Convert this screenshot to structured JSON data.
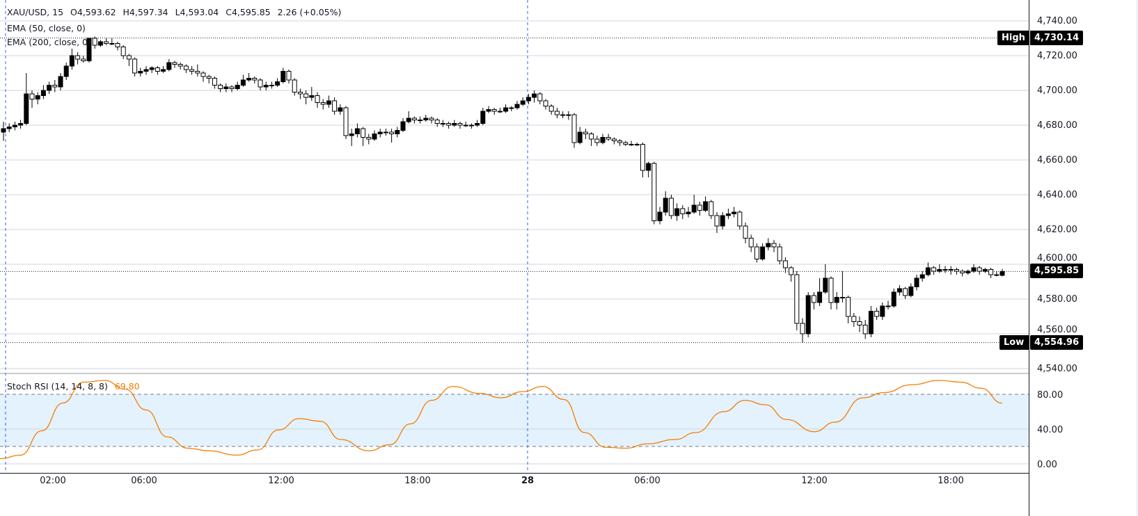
{
  "legend": {
    "symbol": "XAU/USD, 15",
    "open": "O4,593.62",
    "high": "H4,597.34",
    "low": "L4,593.04",
    "close": "C4,595.85",
    "change": "2.26 (+0.05%)",
    "ema50": "EMA (50, close, 0)",
    "ema200": "EMA (200, close, 0)",
    "stoch_label": "Stoch RSI (14, 14, 8, 8)",
    "stoch_value": "69.80"
  },
  "markers": {
    "high_label": "High",
    "high_value": "4,730.14",
    "low_label": "Low",
    "low_value": "4,554.96",
    "last_value": "4,595.85"
  },
  "time_axis": [
    "02:00",
    "06:00",
    "12:00",
    "18:00",
    "28",
    "06:00",
    "12:00",
    "18:00"
  ],
  "colors": {
    "up": "#000000",
    "down": "#ffffff",
    "wick": "#000000",
    "stoch": "#f57c00",
    "band": "#e3f2fd",
    "crosshair": "#2962ff"
  },
  "chart_data": {
    "type": "candlestick",
    "price_axis": {
      "ticks": [
        "4,740.00",
        "4,720.00",
        "4,700.00",
        "4,680.00",
        "4,660.00",
        "4,640.00",
        "4,620.00",
        "4,600.00",
        "4,580.00",
        "4,560.00",
        "4,540.00"
      ],
      "range": [
        4538,
        4752
      ],
      "grid": true
    },
    "stoch_axis": {
      "ticks": [
        "80.00",
        "40.00",
        "0.00"
      ],
      "range": [
        -10,
        105
      ],
      "band": [
        20,
        80
      ]
    },
    "high": 4730.14,
    "low": 4554.96,
    "last": 4595.85,
    "candles": [
      [
        4676,
        4682,
        4671,
        4678
      ],
      [
        4678,
        4681,
        4676,
        4679
      ],
      [
        4679,
        4682,
        4677,
        4680
      ],
      [
        4680,
        4683,
        4678,
        4681
      ],
      [
        4681,
        4710,
        4680,
        4698
      ],
      [
        4698,
        4700,
        4690,
        4695
      ],
      [
        4695,
        4699,
        4692,
        4697
      ],
      [
        4697,
        4703,
        4695,
        4700
      ],
      [
        4700,
        4705,
        4698,
        4703
      ],
      [
        4703,
        4706,
        4699,
        4702
      ],
      [
        4702,
        4710,
        4700,
        4708
      ],
      [
        4708,
        4716,
        4706,
        4714
      ],
      [
        4714,
        4724,
        4712,
        4720
      ],
      [
        4720,
        4722,
        4715,
        4718
      ],
      [
        4718,
        4720,
        4716,
        4717
      ],
      [
        4717,
        4730.14,
        4716,
        4730
      ],
      [
        4730,
        4731,
        4724,
        4726
      ],
      [
        4726,
        4729,
        4725,
        4728
      ],
      [
        4728,
        4730,
        4726,
        4727
      ],
      [
        4727,
        4730,
        4726,
        4727
      ],
      [
        4727,
        4728,
        4723,
        4725
      ],
      [
        4725,
        4726,
        4718,
        4720
      ],
      [
        4720,
        4721,
        4714,
        4718
      ],
      [
        4718,
        4719,
        4708,
        4710
      ],
      [
        4710,
        4713,
        4708,
        4711
      ],
      [
        4711,
        4714,
        4709,
        4712
      ],
      [
        4712,
        4714,
        4710,
        4713
      ],
      [
        4713,
        4714,
        4709,
        4711
      ],
      [
        4711,
        4714,
        4710,
        4712
      ],
      [
        4712,
        4718,
        4711,
        4716
      ],
      [
        4716,
        4717,
        4713,
        4715
      ],
      [
        4715,
        4716,
        4712,
        4714
      ],
      [
        4714,
        4715,
        4710,
        4712
      ],
      [
        4712,
        4714,
        4709,
        4711
      ],
      [
        4711,
        4715,
        4708,
        4710
      ],
      [
        4710,
        4711,
        4705,
        4708
      ],
      [
        4708,
        4709,
        4704,
        4707
      ],
      [
        4707,
        4708,
        4701,
        4703
      ],
      [
        4703,
        4704,
        4699,
        4701
      ],
      [
        4701,
        4704,
        4699,
        4702
      ],
      [
        4702,
        4703,
        4699,
        4701
      ],
      [
        4701,
        4705,
        4700,
        4703
      ],
      [
        4703,
        4709,
        4702,
        4706
      ],
      [
        4706,
        4710,
        4705,
        4707
      ],
      [
        4707,
        4708,
        4704,
        4706
      ],
      [
        4706,
        4707,
        4700,
        4702
      ],
      [
        4702,
        4705,
        4700,
        4703
      ],
      [
        4703,
        4705,
        4701,
        4703
      ],
      [
        4703,
        4707,
        4702,
        4705
      ],
      [
        4705,
        4713,
        4704,
        4711
      ],
      [
        4711,
        4712,
        4704,
        4706
      ],
      [
        4706,
        4707,
        4697,
        4699
      ],
      [
        4699,
        4701,
        4695,
        4698
      ],
      [
        4698,
        4700,
        4692,
        4696
      ],
      [
        4696,
        4702,
        4694,
        4697
      ],
      [
        4697,
        4699,
        4690,
        4693
      ],
      [
        4693,
        4695,
        4689,
        4692
      ],
      [
        4692,
        4697,
        4690,
        4694
      ],
      [
        4694,
        4696,
        4686,
        4688
      ],
      [
        4688,
        4692,
        4686,
        4690
      ],
      [
        4690,
        4691,
        4672,
        4674
      ],
      [
        4674,
        4678,
        4668,
        4675
      ],
      [
        4675,
        4681,
        4673,
        4678
      ],
      [
        4678,
        4679,
        4668,
        4673
      ],
      [
        4673,
        4675,
        4669,
        4672
      ],
      [
        4672,
        4677,
        4671,
        4675
      ],
      [
        4675,
        4678,
        4673,
        4676
      ],
      [
        4676,
        4678,
        4674,
        4676
      ],
      [
        4676,
        4678,
        4670,
        4675
      ],
      [
        4675,
        4679,
        4673,
        4677
      ],
      [
        4677,
        4684,
        4676,
        4682
      ],
      [
        4682,
        4688,
        4681,
        4684
      ],
      [
        4684,
        4685,
        4681,
        4683
      ],
      [
        4683,
        4685,
        4681,
        4683
      ],
      [
        4683,
        4686,
        4682,
        4684
      ],
      [
        4684,
        4685,
        4681,
        4683
      ],
      [
        4683,
        4684,
        4679,
        4681
      ],
      [
        4681,
        4683,
        4679,
        4681
      ],
      [
        4681,
        4682,
        4678,
        4680
      ],
      [
        4680,
        4683,
        4679,
        4681
      ],
      [
        4681,
        4682,
        4678,
        4680
      ],
      [
        4680,
        4682,
        4679,
        4680
      ],
      [
        4680,
        4681,
        4678,
        4680
      ],
      [
        4680,
        4683,
        4679,
        4681
      ],
      [
        4681,
        4690,
        4680,
        4688
      ],
      [
        4688,
        4691,
        4687,
        4689
      ],
      [
        4689,
        4690,
        4686,
        4688
      ],
      [
        4688,
        4690,
        4687,
        4688
      ],
      [
        4688,
        4692,
        4687,
        4690
      ],
      [
        4690,
        4691,
        4688,
        4690
      ],
      [
        4690,
        4694,
        4689,
        4692
      ],
      [
        4692,
        4696,
        4691,
        4694
      ],
      [
        4694,
        4698,
        4692,
        4696
      ],
      [
        4696,
        4700,
        4693,
        4698
      ],
      [
        4698,
        4699,
        4692,
        4694
      ],
      [
        4694,
        4695,
        4689,
        4691
      ],
      [
        4691,
        4692,
        4686,
        4688
      ],
      [
        4688,
        4690,
        4684,
        4686
      ],
      [
        4686,
        4688,
        4684,
        4686
      ],
      [
        4686,
        4688,
        4683,
        4686
      ],
      [
        4686,
        4687,
        4667,
        4670
      ],
      [
        4670,
        4679,
        4669,
        4676
      ],
      [
        4676,
        4678,
        4672,
        4675
      ],
      [
        4675,
        4676,
        4668,
        4672
      ],
      [
        4672,
        4674,
        4668,
        4670
      ],
      [
        4670,
        4675,
        4669,
        4673
      ],
      [
        4673,
        4675,
        4671,
        4672
      ],
      [
        4672,
        4673,
        4669,
        4671
      ],
      [
        4671,
        4672,
        4668,
        4670
      ],
      [
        4670,
        4671,
        4668,
        4669
      ],
      [
        4669,
        4671,
        4668,
        4669
      ],
      [
        4669,
        4670,
        4668,
        4669
      ],
      [
        4669,
        4670,
        4650,
        4654
      ],
      [
        4654,
        4659,
        4650,
        4658
      ],
      [
        4658,
        4659,
        4623,
        4625
      ],
      [
        4625,
        4633,
        4623,
        4630
      ],
      [
        4630,
        4642,
        4628,
        4638
      ],
      [
        4638,
        4640,
        4626,
        4628
      ],
      [
        4628,
        4635,
        4625,
        4632
      ],
      [
        4632,
        4634,
        4626,
        4629
      ],
      [
        4629,
        4633,
        4627,
        4630
      ],
      [
        4630,
        4640,
        4629,
        4634
      ],
      [
        4634,
        4636,
        4628,
        4631
      ],
      [
        4631,
        4639,
        4630,
        4636
      ],
      [
        4636,
        4637,
        4626,
        4628
      ],
      [
        4628,
        4630,
        4618,
        4622
      ],
      [
        4622,
        4630,
        4620,
        4628
      ],
      [
        4628,
        4632,
        4626,
        4629
      ],
      [
        4629,
        4633,
        4627,
        4630
      ],
      [
        4630,
        4631,
        4620,
        4622
      ],
      [
        4622,
        4624,
        4612,
        4615
      ],
      [
        4615,
        4617,
        4607,
        4610
      ],
      [
        4610,
        4612,
        4601,
        4603
      ],
      [
        4603,
        4612,
        4602,
        4610
      ],
      [
        4610,
        4615,
        4608,
        4612
      ],
      [
        4612,
        4614,
        4607,
        4610
      ],
      [
        4610,
        4612,
        4600,
        4602
      ],
      [
        4602,
        4604,
        4595,
        4598
      ],
      [
        4598,
        4599,
        4590,
        4594
      ],
      [
        4594,
        4596,
        4562,
        4566
      ],
      [
        4566,
        4569,
        4554.96,
        4560
      ],
      [
        4560,
        4584,
        4558,
        4582
      ],
      [
        4582,
        4584,
        4574,
        4578
      ],
      [
        4578,
        4592,
        4576,
        4584
      ],
      [
        4584,
        4600,
        4583,
        4592
      ],
      [
        4592,
        4593,
        4574,
        4578
      ],
      [
        4578,
        4584,
        4574,
        4581
      ],
      [
        4581,
        4596,
        4578,
        4581
      ],
      [
        4581,
        4582,
        4566,
        4570
      ],
      [
        4570,
        4572,
        4564,
        4567
      ],
      [
        4567,
        4570,
        4561,
        4565
      ],
      [
        4565,
        4568,
        4557,
        4560
      ],
      [
        4560,
        4576,
        4558,
        4573
      ],
      [
        4573,
        4575,
        4568,
        4570
      ],
      [
        4570,
        4578,
        4568,
        4576
      ],
      [
        4576,
        4579,
        4574,
        4576
      ],
      [
        4576,
        4586,
        4575,
        4584
      ],
      [
        4584,
        4588,
        4582,
        4586
      ],
      [
        4586,
        4587,
        4580,
        4582
      ],
      [
        4582,
        4589,
        4581,
        4587
      ],
      [
        4587,
        4594,
        4585,
        4592
      ],
      [
        4592,
        4596,
        4590,
        4594
      ],
      [
        4594,
        4601,
        4593,
        4598
      ],
      [
        4598,
        4599,
        4594,
        4596
      ],
      [
        4596,
        4600,
        4595,
        4597
      ],
      [
        4597,
        4599,
        4595,
        4597
      ],
      [
        4597,
        4599,
        4594,
        4597
      ],
      [
        4597,
        4598,
        4594,
        4596
      ],
      [
        4596,
        4597,
        4593,
        4595
      ],
      [
        4595,
        4597,
        4594,
        4596
      ],
      [
        4596,
        4600,
        4595,
        4598
      ],
      [
        4598,
        4599,
        4594,
        4596
      ],
      [
        4596,
        4598,
        4595,
        4597
      ],
      [
        4597,
        4598,
        4592,
        4594
      ],
      [
        4594,
        4596,
        4593,
        4594
      ],
      [
        4593.62,
        4597.34,
        4593.04,
        4595.85
      ]
    ],
    "stoch_rsi": [
      [
        -0.6,
        6
      ],
      [
        3,
        10
      ],
      [
        6.7,
        38
      ],
      [
        10.4,
        70
      ],
      [
        14,
        94
      ],
      [
        17.7,
        96
      ],
      [
        21.3,
        86
      ],
      [
        25,
        62
      ],
      [
        28.7,
        31
      ],
      [
        32.3,
        18
      ],
      [
        36,
        15
      ],
      [
        40.9,
        10
      ],
      [
        44.5,
        16
      ],
      [
        48.2,
        39
      ],
      [
        51.8,
        52
      ],
      [
        55.5,
        49
      ],
      [
        59.1,
        28
      ],
      [
        64,
        15
      ],
      [
        67.7,
        22
      ],
      [
        71.3,
        46
      ],
      [
        75,
        73
      ],
      [
        78.7,
        89
      ],
      [
        83.5,
        81
      ],
      [
        87.2,
        76
      ],
      [
        90.9,
        83
      ],
      [
        94.5,
        89
      ],
      [
        98.2,
        74
      ],
      [
        101.8,
        36
      ],
      [
        105.5,
        19
      ],
      [
        109.1,
        18
      ],
      [
        112.8,
        23
      ],
      [
        117.7,
        28
      ],
      [
        121.3,
        36
      ],
      [
        126.2,
        60
      ],
      [
        129.9,
        73
      ],
      [
        133.5,
        68
      ],
      [
        137.2,
        51
      ],
      [
        142.1,
        37
      ],
      [
        145.7,
        48
      ],
      [
        150.6,
        76
      ],
      [
        154.3,
        82
      ],
      [
        159.1,
        91
      ],
      [
        164,
        96
      ],
      [
        167.7,
        94
      ],
      [
        171.3,
        87
      ],
      [
        175,
        69.8
      ]
    ]
  }
}
